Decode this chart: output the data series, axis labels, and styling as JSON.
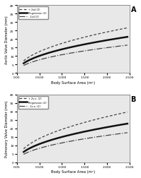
{
  "title_A": "A",
  "title_B": "B",
  "xlabel": "Body Surface Area (m²)",
  "ylabel_A": "Aortic Valve Diameter (mm)",
  "ylabel_B": "Pulmonary Valve Diameter (mm)",
  "legend_labels_A": [
    "+ 2sd (2)",
    "Regression (2)",
    "- 2sd (2)"
  ],
  "legend_labels_B": [
    "+ 2s.e. (2)",
    "Regression (2)",
    "- 2s.e. (2)"
  ],
  "x_min": 0.0,
  "x_max": 2.5,
  "bsa_range": [
    0.15,
    2.45
  ],
  "panel_A": {
    "a": 14.0,
    "b": 0.47,
    "upper_a": 17.5,
    "upper_b": 0.47,
    "lower_a": 10.8,
    "lower_b": 0.47,
    "ylim": [
      0,
      40
    ],
    "yticks": [
      0,
      5,
      10,
      15,
      20,
      25,
      30,
      35,
      40
    ]
  },
  "panel_B": {
    "a": 15.0,
    "b": 0.47,
    "upper_a": 19.5,
    "upper_b": 0.47,
    "lower_a": 11.5,
    "lower_b": 0.47,
    "ylim": [
      0,
      40
    ],
    "yticks": [
      0,
      5,
      10,
      15,
      20,
      25,
      30,
      35,
      40
    ]
  },
  "xticks": [
    0.0,
    0.5,
    1.0,
    1.5,
    2.0,
    2.5
  ],
  "xticklabels": [
    "0.00",
    "0.500",
    "1.000",
    "1.500",
    "2.000",
    "2.500"
  ],
  "bg_color": "#e8e8e8",
  "line_color_regression": "#111111",
  "line_color_upper": "#444444",
  "line_color_lower": "#444444",
  "regression_lw": 1.8,
  "sd_lw": 0.9,
  "regression_ls": "-",
  "upper_ls": "--",
  "lower_ls": "-.",
  "figsize": [
    1.99,
    2.53
  ],
  "dpi": 100
}
